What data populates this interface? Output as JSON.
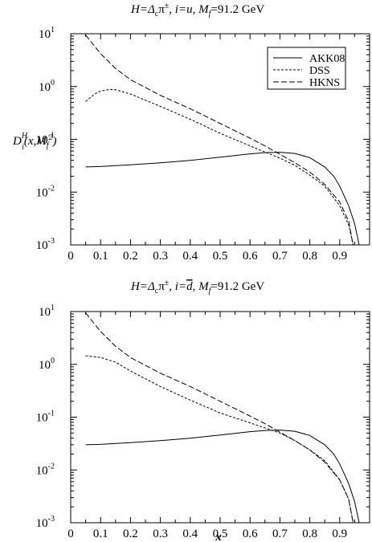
{
  "chart_data": [
    {
      "type": "line",
      "title": {
        "prefix": "H=Δ",
        "sub_c": "c",
        "pi": "π",
        "pi_sup": "±",
        "mid": ", i=u, M",
        "sub_f": "f",
        "suffix": "=91.2 GeV"
      },
      "ylabel": {
        "D": "D",
        "sup": "H",
        "sub": "i",
        "arg": "(x,M",
        "arg_sub": "f",
        "arg_sup": "2",
        "close": ")"
      },
      "xlabel": "",
      "xlim": [
        0,
        1.0
      ],
      "ylim": [
        0.001,
        10
      ],
      "y_scale": "log",
      "x_ticks": [
        "0",
        "0.1",
        "0.2",
        "0.3",
        "0.4",
        "0.5",
        "0.6",
        "0.7",
        "0.8",
        "0.9"
      ],
      "y_ticks": [
        {
          "base": "10",
          "exp": "-3"
        },
        {
          "base": "10",
          "exp": "-2"
        },
        {
          "base": "10",
          "exp": "-1"
        },
        {
          "base": "10",
          "exp": "0"
        },
        {
          "base": "10",
          "exp": "1"
        }
      ],
      "legend_position": "top-right",
      "series": [
        {
          "name": "AKK08",
          "style": "solid",
          "points": [
            [
              0.05,
              0.03
            ],
            [
              0.1,
              0.0305
            ],
            [
              0.2,
              0.033
            ],
            [
              0.3,
              0.036
            ],
            [
              0.4,
              0.04
            ],
            [
              0.5,
              0.046
            ],
            [
              0.6,
              0.053
            ],
            [
              0.65,
              0.056
            ],
            [
              0.7,
              0.057
            ],
            [
              0.75,
              0.054
            ],
            [
              0.8,
              0.045
            ],
            [
              0.85,
              0.03
            ],
            [
              0.88,
              0.02
            ],
            [
              0.9,
              0.013
            ],
            [
              0.93,
              0.0055
            ],
            [
              0.95,
              0.0025
            ],
            [
              0.965,
              0.001
            ]
          ]
        },
        {
          "name": "DSS",
          "style": "dashed",
          "points": [
            [
              0.05,
              0.52
            ],
            [
              0.08,
              0.72
            ],
            [
              0.1,
              0.82
            ],
            [
              0.13,
              0.88
            ],
            [
              0.15,
              0.87
            ],
            [
              0.2,
              0.72
            ],
            [
              0.25,
              0.55
            ],
            [
              0.3,
              0.42
            ],
            [
              0.4,
              0.24
            ],
            [
              0.5,
              0.13
            ],
            [
              0.6,
              0.075
            ],
            [
              0.7,
              0.044
            ],
            [
              0.75,
              0.032
            ],
            [
              0.8,
              0.021
            ],
            [
              0.85,
              0.013
            ],
            [
              0.9,
              0.0055
            ],
            [
              0.93,
              0.0024
            ],
            [
              0.945,
              0.001
            ]
          ]
        },
        {
          "name": "HKNS",
          "style": "longdash",
          "points": [
            [
              0.05,
              9.5
            ],
            [
              0.07,
              6.8
            ],
            [
              0.1,
              4.2
            ],
            [
              0.15,
              2.2
            ],
            [
              0.2,
              1.35
            ],
            [
              0.3,
              0.68
            ],
            [
              0.4,
              0.38
            ],
            [
              0.5,
              0.2
            ],
            [
              0.6,
              0.105
            ],
            [
              0.65,
              0.075
            ],
            [
              0.7,
              0.052
            ],
            [
              0.75,
              0.036
            ],
            [
              0.8,
              0.024
            ],
            [
              0.85,
              0.014
            ],
            [
              0.9,
              0.0065
            ],
            [
              0.93,
              0.0028
            ],
            [
              0.945,
              0.001
            ]
          ]
        }
      ]
    },
    {
      "type": "line",
      "title": {
        "prefix": "H=Δ",
        "sub_c": "c",
        "pi": "π",
        "pi_sup": "±",
        "mid": ", i=",
        "dbar": "d",
        "mid2": ", M",
        "sub_f": "f",
        "suffix": "=91.2 GeV"
      },
      "xlabel": "x",
      "ylabel": "",
      "xlim": [
        0,
        1.0
      ],
      "ylim": [
        0.001,
        10
      ],
      "y_scale": "log",
      "x_ticks": [
        "0",
        "0.1",
        "0.2",
        "0.3",
        "0.4",
        "0.5",
        "0.6",
        "0.7",
        "0.8",
        "0.9"
      ],
      "y_ticks": [
        {
          "base": "10",
          "exp": "-3"
        },
        {
          "base": "10",
          "exp": "-2"
        },
        {
          "base": "10",
          "exp": "-1"
        },
        {
          "base": "10",
          "exp": "0"
        },
        {
          "base": "10",
          "exp": "1"
        }
      ],
      "series": [
        {
          "name": "AKK08",
          "style": "solid",
          "points": [
            [
              0.05,
              0.03
            ],
            [
              0.1,
              0.0305
            ],
            [
              0.2,
              0.033
            ],
            [
              0.3,
              0.036
            ],
            [
              0.4,
              0.04
            ],
            [
              0.5,
              0.046
            ],
            [
              0.6,
              0.053
            ],
            [
              0.65,
              0.056
            ],
            [
              0.7,
              0.057
            ],
            [
              0.75,
              0.054
            ],
            [
              0.8,
              0.045
            ],
            [
              0.85,
              0.03
            ],
            [
              0.88,
              0.02
            ],
            [
              0.9,
              0.013
            ],
            [
              0.93,
              0.0055
            ],
            [
              0.95,
              0.0025
            ],
            [
              0.965,
              0.001
            ]
          ]
        },
        {
          "name": "DSS",
          "style": "dashed",
          "points": [
            [
              0.05,
              1.45
            ],
            [
              0.1,
              1.35
            ],
            [
              0.15,
              1.1
            ],
            [
              0.2,
              0.75
            ],
            [
              0.3,
              0.38
            ],
            [
              0.4,
              0.21
            ],
            [
              0.5,
              0.12
            ],
            [
              0.6,
              0.078
            ],
            [
              0.7,
              0.05
            ],
            [
              0.75,
              0.036
            ],
            [
              0.8,
              0.024
            ],
            [
              0.85,
              0.015
            ],
            [
              0.9,
              0.0065
            ],
            [
              0.93,
              0.0028
            ],
            [
              0.945,
              0.001
            ]
          ]
        },
        {
          "name": "HKNS",
          "style": "longdash",
          "points": [
            [
              0.05,
              9.5
            ],
            [
              0.07,
              6.8
            ],
            [
              0.1,
              4.2
            ],
            [
              0.15,
              2.2
            ],
            [
              0.2,
              1.35
            ],
            [
              0.3,
              0.68
            ],
            [
              0.4,
              0.38
            ],
            [
              0.5,
              0.2
            ],
            [
              0.6,
              0.105
            ],
            [
              0.65,
              0.075
            ],
            [
              0.7,
              0.052
            ],
            [
              0.75,
              0.036
            ],
            [
              0.8,
              0.024
            ],
            [
              0.85,
              0.014
            ],
            [
              0.9,
              0.0065
            ],
            [
              0.93,
              0.0028
            ],
            [
              0.945,
              0.001
            ]
          ]
        }
      ]
    }
  ]
}
